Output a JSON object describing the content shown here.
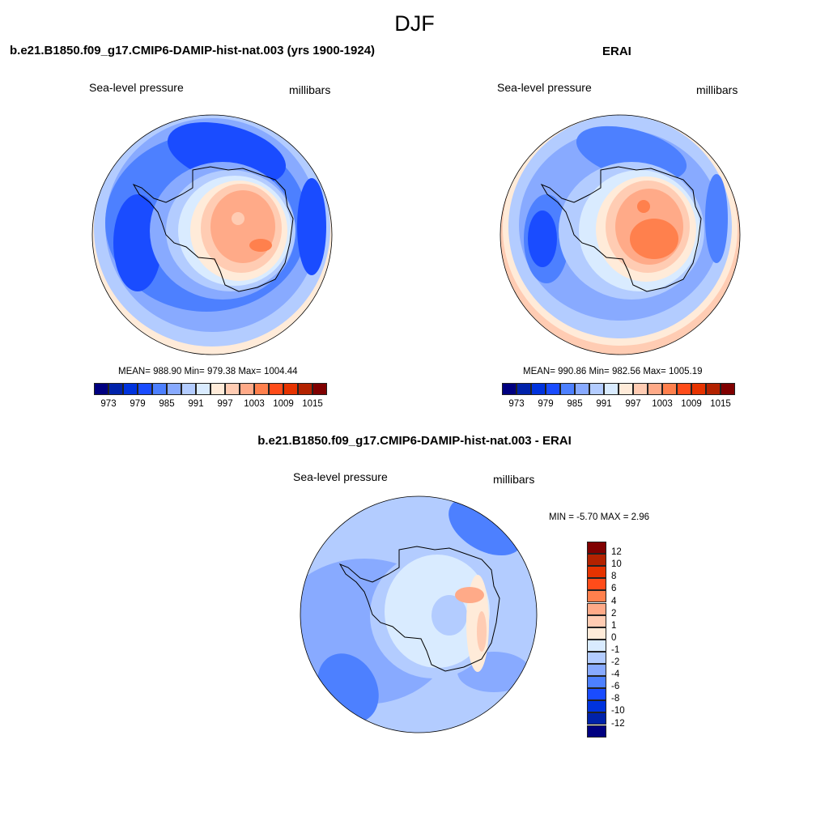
{
  "figure_title": "DJF",
  "colors": [
    "#000080",
    "#0022aa",
    "#0033dd",
    "#1a4cff",
    "#4d80ff",
    "#88aaff",
    "#b3ccff",
    "#d9ebff",
    "#ffebd9",
    "#ffccb3",
    "#ffaa88",
    "#ff804d",
    "#ff4c1a",
    "#e63300",
    "#b32200",
    "#800000"
  ],
  "panels": [
    {
      "title": "b.e21.B1850.f09_g17.CMIP6-DAMIP-hist-nat.003 (yrs 1900-1924)",
      "left_label": "Sea-level pressure",
      "right_label": "millibars",
      "stats": "MEAN= 988.90  Min= 979.38  Max= 1004.44",
      "colorbar_ticks": [
        "973",
        "979",
        "985",
        "991",
        "997",
        "1003",
        "1009",
        "1015"
      ]
    },
    {
      "title": "ERAI",
      "left_label": "Sea-level pressure",
      "right_label": "millibars",
      "stats": "MEAN= 990.86  Min= 982.56  Max= 1005.19",
      "colorbar_ticks": [
        "973",
        "979",
        "985",
        "991",
        "997",
        "1003",
        "1009",
        "1015"
      ]
    },
    {
      "title": "b.e21.B1850.f09_g17.CMIP6-DAMIP-hist-nat.003 - ERAI",
      "left_label": "Sea-level pressure",
      "right_label": "millibars",
      "stats": "MIN =  -5.70 MAX =   2.96",
      "colorbar_ticks": [
        "12",
        "10",
        "8",
        "6",
        "4",
        "2",
        "1",
        "0",
        "-1",
        "-2",
        "-4",
        "-6",
        "-8",
        "-10",
        "-12"
      ]
    }
  ]
}
